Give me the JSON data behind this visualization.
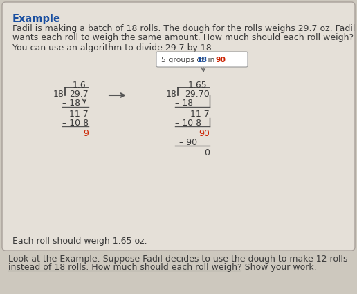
{
  "bg_color": "#cdc8be",
  "box_color": "#e5e0d8",
  "box_border_color": "#a8a09a",
  "title": "Example",
  "title_color": "#1a4fa0",
  "para1_line1": "Fadil is making a batch of 18 rolls. The dough for the rolls weighs 29.7 oz. Fadil",
  "para1_line2": "wants each roll to weigh the same amount. How much should each roll weigh?",
  "para2": "You can use an algorithm to divide 29.7 by 18.",
  "callout_text": "5 groups of ",
  "callout_18": "18",
  "callout_in": " in ",
  "callout_90": "90",
  "callout_color": "#444444",
  "callout_18_color": "#1a4fa0",
  "callout_90_color": "#cc2200",
  "conclusion": "Each roll should weigh 1.65 oz.",
  "bottom_line1": "Look at the Example. Suppose Fadil decides to use the dough to make 12 rolls",
  "bottom_line2": "instead of 18 rolls. How much should each roll weigh? Show your work.",
  "arrow_color": "#555555",
  "red_color": "#cc2200",
  "blue_color": "#1a4fa0",
  "dark_color": "#3a3a3a",
  "line_color": "#555555",
  "body_fs": 9.0,
  "title_fs": 10.5,
  "math_fs": 9.0
}
